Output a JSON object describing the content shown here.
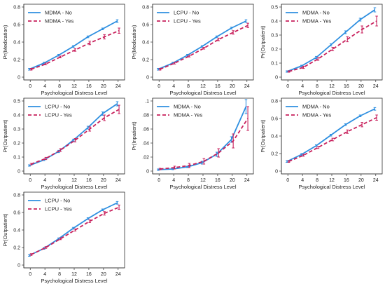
{
  "figure": {
    "xlabel": "Psychological Distress Level",
    "x_ticks": [
      0,
      4,
      8,
      12,
      16,
      20,
      24
    ],
    "colors": {
      "no": "#2e8fe0",
      "yes": "#c8205c"
    }
  },
  "chart_data": [
    {
      "type": "line",
      "xlabel": "Psychological Distress Level",
      "ylabel": "Pr(Medication)",
      "ylim": [
        0,
        0.8
      ],
      "y_ticks": [
        0,
        0.2,
        0.4,
        0.6,
        0.8
      ],
      "y_tick_labels": [
        "0",
        "0.2",
        "0.4",
        "0.6",
        "0.8"
      ],
      "x": [
        0,
        4,
        8,
        12,
        16,
        20,
        24
      ],
      "legend_position": "top-left",
      "series": [
        {
          "name": "MDMA - No",
          "style": "solid",
          "values": [
            0.09,
            0.16,
            0.25,
            0.35,
            0.46,
            0.55,
            0.64
          ],
          "err": [
            0.01,
            0.01,
            0.01,
            0.01,
            0.01,
            0.01,
            0.015
          ]
        },
        {
          "name": "MDMA - Yes",
          "style": "dashed",
          "values": [
            0.09,
            0.15,
            0.23,
            0.31,
            0.39,
            0.46,
            0.53
          ],
          "err": [
            0.01,
            0.01,
            0.01,
            0.015,
            0.02,
            0.025,
            0.03
          ]
        }
      ]
    },
    {
      "type": "line",
      "xlabel": "Psychological Distress Level",
      "ylabel": "Pr(Medication)",
      "ylim": [
        0,
        0.8
      ],
      "y_ticks": [
        0,
        0.2,
        0.4,
        0.6,
        0.8
      ],
      "y_tick_labels": [
        "0",
        "0.2",
        "0.4",
        "0.6",
        "0.8"
      ],
      "x": [
        0,
        4,
        8,
        12,
        16,
        20,
        24
      ],
      "legend_position": "top-left",
      "series": [
        {
          "name": "LCPU - No",
          "style": "solid",
          "values": [
            0.09,
            0.16,
            0.25,
            0.35,
            0.46,
            0.56,
            0.64
          ],
          "err": [
            0.01,
            0.01,
            0.01,
            0.01,
            0.01,
            0.01,
            0.015
          ]
        },
        {
          "name": "LCPU - Yes",
          "style": "dashed",
          "values": [
            0.09,
            0.16,
            0.24,
            0.33,
            0.43,
            0.51,
            0.59
          ],
          "err": [
            0.01,
            0.01,
            0.01,
            0.01,
            0.015,
            0.02,
            0.025
          ]
        }
      ]
    },
    {
      "type": "line",
      "xlabel": "Psychological Distress Level",
      "ylabel": "Pr(Outpatient)",
      "ylim": [
        0,
        0.5
      ],
      "y_ticks": [
        0,
        0.1,
        0.2,
        0.3,
        0.4,
        0.5
      ],
      "y_tick_labels": [
        "0",
        "0.1",
        "0.2",
        "0.3",
        "0.4",
        "0.5"
      ],
      "x": [
        0,
        4,
        8,
        12,
        16,
        20,
        24
      ],
      "legend_position": "top-left",
      "series": [
        {
          "name": "MDMA - No",
          "style": "solid",
          "values": [
            0.04,
            0.08,
            0.14,
            0.23,
            0.32,
            0.41,
            0.48
          ],
          "err": [
            0.005,
            0.005,
            0.008,
            0.008,
            0.01,
            0.01,
            0.015
          ]
        },
        {
          "name": "MDMA - Yes",
          "style": "dashed",
          "values": [
            0.04,
            0.07,
            0.13,
            0.2,
            0.27,
            0.34,
            0.4
          ],
          "err": [
            0.005,
            0.008,
            0.01,
            0.012,
            0.018,
            0.025,
            0.035
          ]
        }
      ]
    },
    {
      "type": "line",
      "xlabel": "Psychological Distress Level",
      "ylabel": "Pr(Outpatient)",
      "ylim": [
        0,
        0.5
      ],
      "y_ticks": [
        0,
        0.1,
        0.2,
        0.3,
        0.4,
        0.5
      ],
      "y_tick_labels": [
        "0",
        "0.1",
        "0.2",
        "0.3",
        "0.4",
        "0.5"
      ],
      "x": [
        0,
        4,
        8,
        12,
        16,
        20,
        24
      ],
      "legend_position": "top-left",
      "series": [
        {
          "name": "LCPU - No",
          "style": "solid",
          "values": [
            0.04,
            0.08,
            0.14,
            0.22,
            0.31,
            0.41,
            0.48
          ],
          "err": [
            0.005,
            0.005,
            0.008,
            0.008,
            0.01,
            0.012,
            0.015
          ]
        },
        {
          "name": "LCPU - Yes",
          "style": "dashed",
          "values": [
            0.05,
            0.09,
            0.15,
            0.22,
            0.3,
            0.38,
            0.44
          ],
          "err": [
            0.005,
            0.008,
            0.01,
            0.012,
            0.015,
            0.02,
            0.03
          ]
        }
      ]
    },
    {
      "type": "line",
      "xlabel": "Psychological Distress Level",
      "ylabel": "Pr(Inpatient)",
      "ylim": [
        0,
        0.1
      ],
      "y_ticks": [
        0,
        0.02,
        0.04,
        0.06,
        0.08,
        0.1
      ],
      "y_tick_labels": [
        "0",
        ".02",
        ".04",
        ".06",
        ".08",
        ".1"
      ],
      "x": [
        0,
        4,
        8,
        12,
        16,
        20,
        24
      ],
      "legend_position": "top-left",
      "series": [
        {
          "name": "MDMA - No",
          "style": "solid",
          "values": [
            0.002,
            0.003,
            0.006,
            0.012,
            0.024,
            0.045,
            0.092
          ],
          "err": [
            0.001,
            0.001,
            0.001,
            0.002,
            0.003,
            0.004,
            0.01
          ]
        },
        {
          "name": "MDMA - Yes",
          "style": "dashed",
          "values": [
            0.003,
            0.005,
            0.008,
            0.014,
            0.026,
            0.043,
            0.075
          ],
          "err": [
            0.001,
            0.002,
            0.003,
            0.004,
            0.006,
            0.01,
            0.017
          ]
        }
      ]
    },
    {
      "type": "line",
      "xlabel": "Psychological Distress Level",
      "ylabel": "Pr(Outpatient)",
      "ylim": [
        0,
        0.8
      ],
      "y_ticks": [
        0,
        0.2,
        0.4,
        0.6,
        0.8
      ],
      "y_tick_labels": [
        "0",
        "0.2",
        "0.4",
        "0.6",
        "0.8"
      ],
      "x": [
        0,
        4,
        8,
        12,
        16,
        20,
        24
      ],
      "legend_position": "top-left",
      "series": [
        {
          "name": "MDMA - No",
          "style": "solid",
          "values": [
            0.11,
            0.19,
            0.29,
            0.41,
            0.53,
            0.63,
            0.71
          ],
          "err": [
            0.01,
            0.01,
            0.01,
            0.01,
            0.01,
            0.01,
            0.015
          ]
        },
        {
          "name": "MDMA - Yes",
          "style": "dashed",
          "values": [
            0.11,
            0.18,
            0.27,
            0.36,
            0.45,
            0.53,
            0.61
          ],
          "err": [
            0.01,
            0.01,
            0.012,
            0.015,
            0.02,
            0.025,
            0.03
          ]
        }
      ]
    },
    {
      "type": "line",
      "xlabel": "Psychological Distress Level",
      "ylabel": "Pr(Outpatient)",
      "ylim": [
        0,
        0.8
      ],
      "y_ticks": [
        0,
        0.2,
        0.4,
        0.6,
        0.8
      ],
      "y_tick_labels": [
        "0",
        "0.2",
        "0.4",
        "0.6",
        "0.8"
      ],
      "x": [
        0,
        4,
        8,
        12,
        16,
        20,
        24
      ],
      "legend_position": "top-left",
      "series": [
        {
          "name": "LCPU - No",
          "style": "solid",
          "values": [
            0.11,
            0.19,
            0.3,
            0.42,
            0.53,
            0.63,
            0.71
          ],
          "err": [
            0.01,
            0.01,
            0.01,
            0.01,
            0.01,
            0.01,
            0.015
          ]
        },
        {
          "name": "LCPU - Yes",
          "style": "dashed",
          "values": [
            0.12,
            0.2,
            0.3,
            0.4,
            0.5,
            0.59,
            0.66
          ],
          "err": [
            0.01,
            0.01,
            0.01,
            0.012,
            0.015,
            0.02,
            0.025
          ]
        }
      ]
    }
  ]
}
